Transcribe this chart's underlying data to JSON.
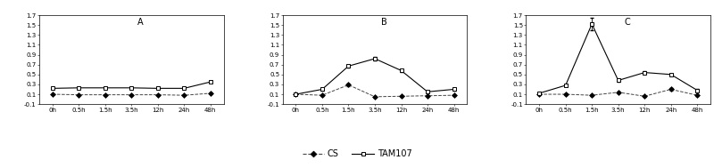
{
  "x_labels": [
    "0h",
    "0.5h",
    "1.5h",
    "3.5h",
    "12h",
    "24h",
    "48h"
  ],
  "x_vals": [
    0,
    1,
    2,
    3,
    4,
    5,
    6
  ],
  "A_TAM107": [
    0.22,
    0.23,
    0.23,
    0.23,
    0.22,
    0.22,
    0.35
  ],
  "A_TAM107_err": [
    0.005,
    0.005,
    0.005,
    0.005,
    0.005,
    0.005,
    0.02
  ],
  "A_CS": [
    0.1,
    0.09,
    0.09,
    0.09,
    0.09,
    0.08,
    0.12
  ],
  "A_CS_err": [
    0.004,
    0.004,
    0.004,
    0.004,
    0.004,
    0.004,
    0.008
  ],
  "B_TAM107": [
    0.1,
    0.2,
    0.67,
    0.82,
    0.58,
    0.15,
    0.2
  ],
  "B_TAM107_err": [
    0.01,
    0.02,
    0.03,
    0.03,
    0.03,
    0.02,
    0.02
  ],
  "B_CS": [
    0.1,
    0.08,
    0.29,
    0.05,
    0.06,
    0.07,
    0.08
  ],
  "B_CS_err": [
    0.01,
    0.01,
    0.03,
    0.02,
    0.01,
    0.01,
    0.01
  ],
  "C_TAM107": [
    0.12,
    0.28,
    1.52,
    0.38,
    0.54,
    0.5,
    0.18
  ],
  "C_TAM107_err": [
    0.01,
    0.02,
    0.12,
    0.02,
    0.03,
    0.02,
    0.02
  ],
  "C_CS": [
    0.1,
    0.1,
    0.08,
    0.14,
    0.06,
    0.2,
    0.08
  ],
  "C_CS_err": [
    0.01,
    0.01,
    0.01,
    0.02,
    0.01,
    0.03,
    0.01
  ],
  "ylim": [
    -0.1,
    1.7
  ],
  "yticks": [
    -0.1,
    0.1,
    0.3,
    0.5,
    0.7,
    0.9,
    1.1,
    1.3,
    1.5,
    1.7
  ],
  "ytick_labels": [
    "-0.1",
    "0.1",
    "0.3",
    "0.5",
    "0.7",
    "0.9",
    "1.1",
    "1.3",
    "1.5",
    "1.7"
  ],
  "panel_labels": [
    "A",
    "B",
    "C"
  ],
  "legend_CS": "CS",
  "legend_TAM107": "TAM107",
  "color_TAM107": "#000000",
  "color_CS": "#444444",
  "bg_color": "#ffffff",
  "fig_width": 8.0,
  "fig_height": 1.89
}
